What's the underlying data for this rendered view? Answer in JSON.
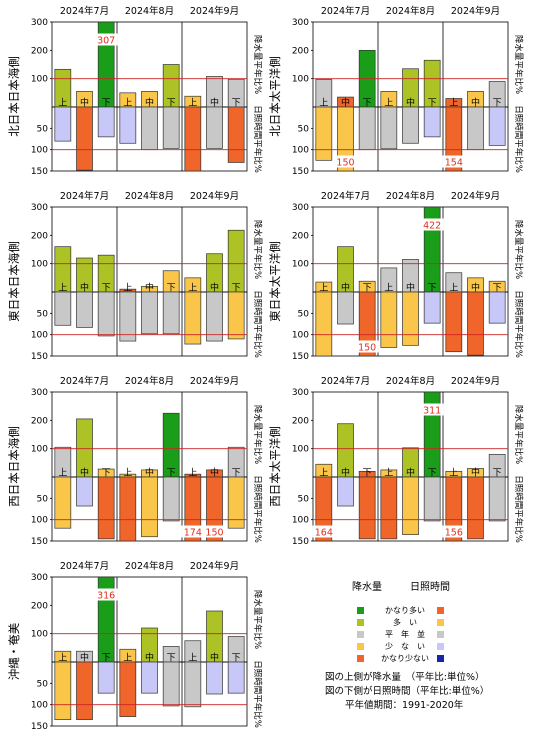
{
  "months": [
    "2024年7月",
    "2024年8月",
    "2024年9月"
  ],
  "dekads": [
    "上",
    "中",
    "下"
  ],
  "axis_labels": {
    "precip_right": "降水量平年比%",
    "sun_right": "日照時間平年比%"
  },
  "legend": {
    "header_precip": "降水量",
    "header_sun": "日照時間",
    "categories": [
      {
        "label": "かなり多い",
        "precip_color": "#1a9e1a",
        "sun_color": "#f0652a"
      },
      {
        "label": "多　い",
        "precip_color": "#adc224",
        "sun_color": "#f9c64a"
      },
      {
        "label": "平　年　並",
        "precip_color": "#c8c8c8",
        "sun_color": "#c8c8c8"
      },
      {
        "label": "少　な　い",
        "precip_color": "#f9c64a",
        "sun_color": "#c8c8f8"
      },
      {
        "label": "かなり少ない",
        "precip_color": "#f0652a",
        "sun_color": "#1a24a8"
      }
    ],
    "notes": [
      "図の上側が降水量　（平年比:単位%）",
      "図の下側が日照時間（平年比:単位%）",
      "平年値期間：1991-2020年"
    ]
  },
  "chart_data": [
    {
      "type": "bar",
      "title": "北日本日本海側",
      "categories": [
        "7月上",
        "7月中",
        "7月下",
        "8月上",
        "8月中",
        "8月下",
        "9月上",
        "9月中",
        "9月下"
      ],
      "series": [
        {
          "values": [
            133,
            55,
            307,
            50,
            55,
            150,
            38,
            108,
            98
          ],
          "colors": [
            "#adc224",
            "#f9c64a",
            "#1a9e1a",
            "#f9c64a",
            "#f9c64a",
            "#adc224",
            "#f9c64a",
            "#c8c8c8",
            "#c8c8c8"
          ]
        },
        {
          "values": [
            80,
            148,
            70,
            85,
            100,
            97,
            150,
            97,
            130
          ],
          "colors": [
            "#c8c8f8",
            "#f0652a",
            "#c8c8f8",
            "#c8c8f8",
            "#c8c8c8",
            "#c8c8c8",
            "#f0652a",
            "#c8c8c8",
            "#f0652a"
          ]
        }
      ],
      "ylim_precip": [
        0,
        300
      ],
      "ylim_sun": [
        0,
        150
      ],
      "precip_ticks": [
        "100",
        "200",
        "300"
      ],
      "sun_ticks": [
        "50",
        "100",
        "150"
      ],
      "precip_labels": [
        "",
        "",
        "307",
        "",
        "",
        "",
        "",
        "",
        ""
      ],
      "sun_labels": [
        "",
        "",
        "",
        "",
        "",
        "",
        "",
        "",
        ""
      ]
    },
    {
      "type": "bar",
      "title": "北日本太平洋側",
      "categories": [
        "7月上",
        "7月中",
        "7月下",
        "8月上",
        "8月中",
        "8月下",
        "9月上",
        "9月中",
        "9月下"
      ],
      "series": [
        {
          "values": [
            97,
            35,
            200,
            55,
            135,
            165,
            30,
            55,
            90
          ],
          "colors": [
            "#c8c8c8",
            "#f0652a",
            "#1a9e1a",
            "#f9c64a",
            "#adc224",
            "#adc224",
            "#f0652a",
            "#f9c64a",
            "#c8c8c8"
          ]
        },
        {
          "values": [
            125,
            150,
            100,
            98,
            85,
            70,
            154,
            100,
            90
          ],
          "colors": [
            "#f9c64a",
            "#f9c64a",
            "#c8c8c8",
            "#c8c8c8",
            "#c8c8c8",
            "#c8c8f8",
            "#f0652a",
            "#c8c8c8",
            "#c8c8f8"
          ]
        }
      ],
      "ylim_precip": [
        0,
        300
      ],
      "ylim_sun": [
        0,
        150
      ],
      "precip_ticks": [
        "100",
        "200",
        "300"
      ],
      "sun_ticks": [
        "50",
        "100",
        "150"
      ],
      "precip_labels": [
        "",
        "",
        "",
        "",
        "",
        "",
        "",
        "",
        ""
      ],
      "sun_labels": [
        "",
        "150",
        "",
        "",
        "",
        "",
        "154",
        "",
        ""
      ]
    },
    {
      "type": "bar",
      "title": "東日本日本海側",
      "categories": [
        "7月上",
        "7月中",
        "7月下",
        "8月上",
        "8月中",
        "8月下",
        "9月上",
        "9月中",
        "9月下"
      ],
      "series": [
        {
          "values": [
            160,
            120,
            130,
            10,
            20,
            75,
            50,
            135,
            218
          ],
          "colors": [
            "#adc224",
            "#adc224",
            "#adc224",
            "#f0652a",
            "#f9c64a",
            "#f9c64a",
            "#f9c64a",
            "#adc224",
            "#adc224"
          ]
        },
        {
          "values": [
            78,
            83,
            103,
            115,
            98,
            98,
            122,
            115,
            110
          ],
          "colors": [
            "#c8c8c8",
            "#c8c8c8",
            "#c8c8c8",
            "#c8c8c8",
            "#c8c8c8",
            "#c8c8c8",
            "#f9c64a",
            "#c8c8c8",
            "#f9c64a"
          ]
        }
      ],
      "ylim_precip": [
        0,
        300
      ],
      "ylim_sun": [
        0,
        150
      ],
      "precip_ticks": [
        "100",
        "200",
        "300"
      ],
      "sun_ticks": [
        "50",
        "100",
        "150"
      ],
      "precip_labels": [
        "",
        "",
        "",
        "",
        "",
        "",
        "",
        "",
        ""
      ],
      "sun_labels": [
        "",
        "",
        "",
        "",
        "",
        "",
        "",
        "",
        ""
      ]
    },
    {
      "type": "bar",
      "title": "東日本太平洋側",
      "categories": [
        "7月上",
        "7月中",
        "7月下",
        "8月上",
        "8月中",
        "8月下",
        "9月上",
        "9月中",
        "9月下"
      ],
      "series": [
        {
          "values": [
            35,
            160,
            38,
            85,
            115,
            422,
            68,
            50,
            38
          ],
          "colors": [
            "#f9c64a",
            "#adc224",
            "#f9c64a",
            "#c8c8c8",
            "#c8c8c8",
            "#1a9e1a",
            "#c8c8c8",
            "#f9c64a",
            "#f9c64a"
          ]
        },
        {
          "values": [
            150,
            75,
            150,
            130,
            125,
            73,
            140,
            148,
            73
          ],
          "colors": [
            "#f9c64a",
            "#c8c8c8",
            "#f0652a",
            "#f9c64a",
            "#f9c64a",
            "#c8c8f8",
            "#f0652a",
            "#f0652a",
            "#c8c8f8"
          ]
        }
      ],
      "ylim_precip": [
        0,
        300
      ],
      "ylim_sun": [
        0,
        150
      ],
      "precip_ticks": [
        "100",
        "200",
        "300"
      ],
      "sun_ticks": [
        "50",
        "100",
        "150"
      ],
      "precip_labels": [
        "",
        "",
        "",
        "",
        "",
        "422",
        "",
        "",
        ""
      ],
      "sun_labels": [
        "",
        "",
        "150",
        "",
        "",
        "",
        "",
        "",
        ""
      ]
    },
    {
      "type": "bar",
      "title": "西日本日本海側",
      "categories": [
        "7月上",
        "7月中",
        "7月下",
        "8月上",
        "8月中",
        "8月下",
        "9月上",
        "9月中",
        "9月下"
      ],
      "series": [
        {
          "values": [
            105,
            205,
            28,
            10,
            25,
            225,
            10,
            25,
            105
          ],
          "colors": [
            "#c8c8c8",
            "#adc224",
            "#f9c64a",
            "#f9c64a",
            "#f9c64a",
            "#1a9e1a",
            "#f0652a",
            "#f0652a",
            "#c8c8c8"
          ]
        },
        {
          "values": [
            120,
            68,
            145,
            150,
            140,
            103,
            174,
            150,
            120
          ],
          "colors": [
            "#f9c64a",
            "#c8c8f8",
            "#f0652a",
            "#f0652a",
            "#f9c64a",
            "#c8c8c8",
            "#f0652a",
            "#f0652a",
            "#f9c64a"
          ]
        }
      ],
      "ylim_precip": [
        0,
        300
      ],
      "ylim_sun": [
        0,
        150
      ],
      "precip_ticks": [
        "100",
        "200",
        "300"
      ],
      "sun_ticks": [
        "50",
        "100",
        "150"
      ],
      "precip_labels": [
        "",
        "",
        "",
        "",
        "",
        "",
        "",
        "",
        ""
      ],
      "sun_labels": [
        "",
        "",
        "",
        "",
        "",
        "",
        "174",
        "150",
        ""
      ]
    },
    {
      "type": "bar",
      "title": "西日本太平洋側",
      "categories": [
        "7月上",
        "7月中",
        "7月下",
        "8月上",
        "8月中",
        "8月下",
        "9月上",
        "9月中",
        "9月下"
      ],
      "series": [
        {
          "values": [
            45,
            188,
            20,
            25,
            103,
            311,
            20,
            30,
            80
          ],
          "colors": [
            "#f9c64a",
            "#adc224",
            "#f0652a",
            "#f9c64a",
            "#adc224",
            "#1a9e1a",
            "#f9c64a",
            "#f9c64a",
            "#c8c8c8"
          ]
        },
        {
          "values": [
            164,
            68,
            145,
            145,
            135,
            103,
            156,
            145,
            103
          ],
          "colors": [
            "#f0652a",
            "#c8c8f8",
            "#f0652a",
            "#f0652a",
            "#f9c64a",
            "#c8c8c8",
            "#f0652a",
            "#f0652a",
            "#c8c8c8"
          ]
        }
      ],
      "ylim_precip": [
        0,
        300
      ],
      "ylim_sun": [
        0,
        150
      ],
      "precip_ticks": [
        "100",
        "200",
        "300"
      ],
      "sun_ticks": [
        "50",
        "100",
        "150"
      ],
      "precip_labels": [
        "",
        "",
        "",
        "",
        "",
        "311",
        "",
        "",
        ""
      ],
      "sun_labels": [
        "164",
        "",
        "",
        "",
        "",
        "",
        "156",
        "",
        ""
      ]
    },
    {
      "type": "bar",
      "title": "沖縄・奄美",
      "categories": [
        "7月上",
        "7月中",
        "7月下",
        "8月上",
        "8月中",
        "8月下",
        "9月上",
        "9月中",
        "9月下"
      ],
      "series": [
        {
          "values": [
            38,
            38,
            316,
            45,
            120,
            55,
            75,
            180,
            90
          ],
          "colors": [
            "#f9c64a",
            "#c8c8c8",
            "#1a9e1a",
            "#f9c64a",
            "#adc224",
            "#c8c8c8",
            "#c8c8c8",
            "#adc224",
            "#c8c8c8"
          ]
        },
        {
          "values": [
            135,
            135,
            73,
            128,
            73,
            103,
            105,
            75,
            73
          ],
          "colors": [
            "#f9c64a",
            "#f0652a",
            "#c8c8f8",
            "#f0652a",
            "#c8c8f8",
            "#c8c8c8",
            "#c8c8c8",
            "#c8c8f8",
            "#c8c8f8"
          ]
        }
      ],
      "ylim_precip": [
        0,
        300
      ],
      "ylim_sun": [
        0,
        150
      ],
      "precip_ticks": [
        "100",
        "200",
        "300"
      ],
      "sun_ticks": [
        "50",
        "100",
        "150"
      ],
      "precip_labels": [
        "",
        "",
        "316",
        "",
        "",
        "",
        "",
        "",
        ""
      ],
      "sun_labels": [
        "",
        "",
        "",
        "",
        "",
        "",
        "",
        "",
        ""
      ]
    }
  ]
}
